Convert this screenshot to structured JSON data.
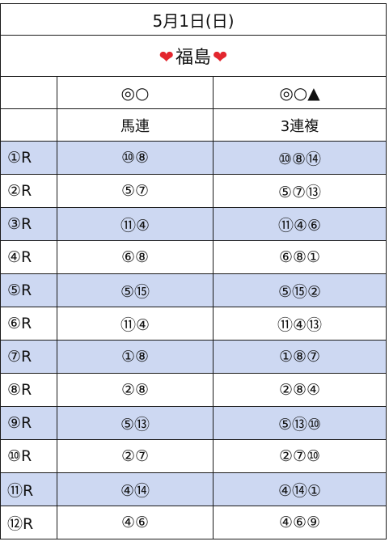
{
  "header": {
    "date": "5月1日(日)",
    "venue_left_icon": "heart-icon",
    "venue": "福島",
    "venue_right_icon": "heart-icon",
    "heart_color": "#e3262e"
  },
  "columns": {
    "umaren_marks": "◎○",
    "sanrenpuku_marks": "◎○▲",
    "umaren_label": "馬連",
    "sanrenpuku_label": "3連複"
  },
  "row_shade_color": "#cdd8f2",
  "races": [
    {
      "race": "①R",
      "umaren": "⑩⑧",
      "sanrenpuku": "⑩⑧⑭"
    },
    {
      "race": "②R",
      "umaren": "⑤⑦",
      "sanrenpuku": "⑤⑦⑬"
    },
    {
      "race": "③R",
      "umaren": "⑪④",
      "sanrenpuku": "⑪④⑥"
    },
    {
      "race": "④R",
      "umaren": "⑥⑧",
      "sanrenpuku": "⑥⑧①"
    },
    {
      "race": "⑤R",
      "umaren": "⑤⑮",
      "sanrenpuku": "⑤⑮②"
    },
    {
      "race": "⑥R",
      "umaren": "⑪④",
      "sanrenpuku": "⑪④⑬"
    },
    {
      "race": "⑦R",
      "umaren": "①⑧",
      "sanrenpuku": "①⑧⑦"
    },
    {
      "race": "⑧R",
      "umaren": "②⑧",
      "sanrenpuku": "②⑧④"
    },
    {
      "race": "⑨R",
      "umaren": "⑤⑬",
      "sanrenpuku": "⑤⑬⑩"
    },
    {
      "race": "⑩R",
      "umaren": "②⑦",
      "sanrenpuku": "②⑦⑩"
    },
    {
      "race": "⑪R",
      "umaren": "④⑭",
      "sanrenpuku": "④⑭①"
    },
    {
      "race": "⑫R",
      "umaren": "④⑥",
      "sanrenpuku": "④⑥⑨"
    }
  ]
}
